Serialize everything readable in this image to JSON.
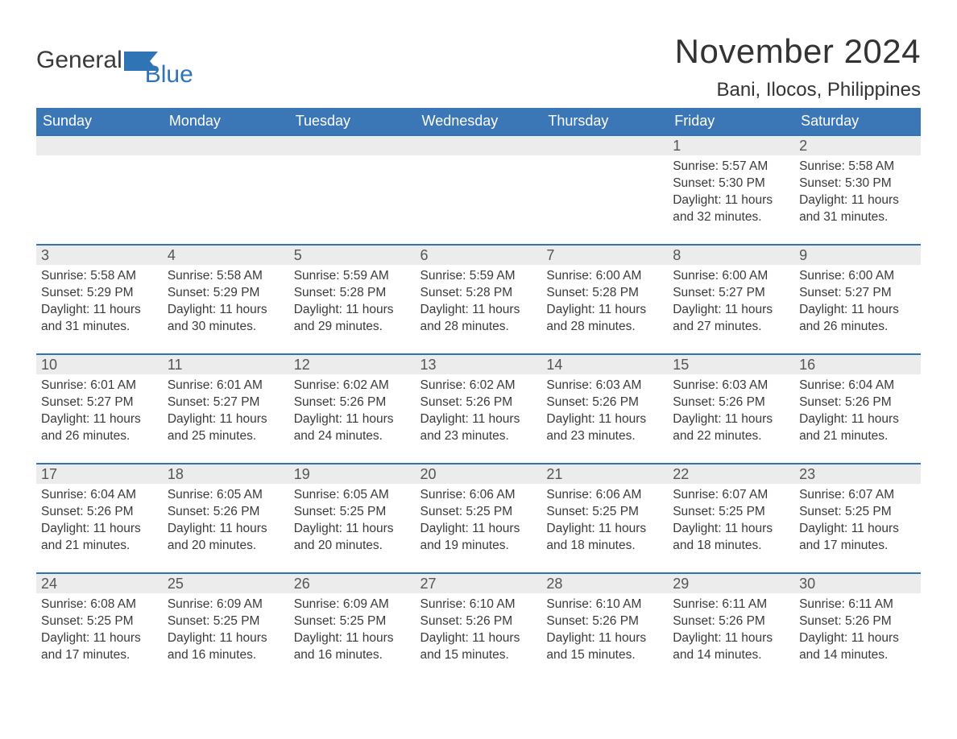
{
  "logo": {
    "word1": "General",
    "word2": "Blue"
  },
  "title": "November 2024",
  "location": "Bani, Ilocos, Philippines",
  "colors": {
    "header_bg": "#3b77b6",
    "header_text": "#ffffff",
    "strip_bg": "#ececec",
    "strip_border": "#2f74b5",
    "body_text": "#3a3a3a",
    "logo_blue": "#2f74b5",
    "background": "#ffffff"
  },
  "typography": {
    "title_fontsize": 42,
    "location_fontsize": 24,
    "dayheader_fontsize": 18,
    "daynum_fontsize": 18,
    "body_fontsize": 15.5
  },
  "layout": {
    "columns": 7,
    "rows": 5,
    "col_width_pct": 14.285
  },
  "labels": {
    "sunrise": "Sunrise:",
    "sunset": "Sunset:",
    "daylight": "Daylight:"
  },
  "day_headers": [
    "Sunday",
    "Monday",
    "Tuesday",
    "Wednesday",
    "Thursday",
    "Friday",
    "Saturday"
  ],
  "weeks": [
    [
      null,
      null,
      null,
      null,
      null,
      {
        "n": "1",
        "sunrise": "5:57 AM",
        "sunset": "5:30 PM",
        "daylight": "11 hours and 32 minutes."
      },
      {
        "n": "2",
        "sunrise": "5:58 AM",
        "sunset": "5:30 PM",
        "daylight": "11 hours and 31 minutes."
      }
    ],
    [
      {
        "n": "3",
        "sunrise": "5:58 AM",
        "sunset": "5:29 PM",
        "daylight": "11 hours and 31 minutes."
      },
      {
        "n": "4",
        "sunrise": "5:58 AM",
        "sunset": "5:29 PM",
        "daylight": "11 hours and 30 minutes."
      },
      {
        "n": "5",
        "sunrise": "5:59 AM",
        "sunset": "5:28 PM",
        "daylight": "11 hours and 29 minutes."
      },
      {
        "n": "6",
        "sunrise": "5:59 AM",
        "sunset": "5:28 PM",
        "daylight": "11 hours and 28 minutes."
      },
      {
        "n": "7",
        "sunrise": "6:00 AM",
        "sunset": "5:28 PM",
        "daylight": "11 hours and 28 minutes."
      },
      {
        "n": "8",
        "sunrise": "6:00 AM",
        "sunset": "5:27 PM",
        "daylight": "11 hours and 27 minutes."
      },
      {
        "n": "9",
        "sunrise": "6:00 AM",
        "sunset": "5:27 PM",
        "daylight": "11 hours and 26 minutes."
      }
    ],
    [
      {
        "n": "10",
        "sunrise": "6:01 AM",
        "sunset": "5:27 PM",
        "daylight": "11 hours and 26 minutes."
      },
      {
        "n": "11",
        "sunrise": "6:01 AM",
        "sunset": "5:27 PM",
        "daylight": "11 hours and 25 minutes."
      },
      {
        "n": "12",
        "sunrise": "6:02 AM",
        "sunset": "5:26 PM",
        "daylight": "11 hours and 24 minutes."
      },
      {
        "n": "13",
        "sunrise": "6:02 AM",
        "sunset": "5:26 PM",
        "daylight": "11 hours and 23 minutes."
      },
      {
        "n": "14",
        "sunrise": "6:03 AM",
        "sunset": "5:26 PM",
        "daylight": "11 hours and 23 minutes."
      },
      {
        "n": "15",
        "sunrise": "6:03 AM",
        "sunset": "5:26 PM",
        "daylight": "11 hours and 22 minutes."
      },
      {
        "n": "16",
        "sunrise": "6:04 AM",
        "sunset": "5:26 PM",
        "daylight": "11 hours and 21 minutes."
      }
    ],
    [
      {
        "n": "17",
        "sunrise": "6:04 AM",
        "sunset": "5:26 PM",
        "daylight": "11 hours and 21 minutes."
      },
      {
        "n": "18",
        "sunrise": "6:05 AM",
        "sunset": "5:26 PM",
        "daylight": "11 hours and 20 minutes."
      },
      {
        "n": "19",
        "sunrise": "6:05 AM",
        "sunset": "5:25 PM",
        "daylight": "11 hours and 20 minutes."
      },
      {
        "n": "20",
        "sunrise": "6:06 AM",
        "sunset": "5:25 PM",
        "daylight": "11 hours and 19 minutes."
      },
      {
        "n": "21",
        "sunrise": "6:06 AM",
        "sunset": "5:25 PM",
        "daylight": "11 hours and 18 minutes."
      },
      {
        "n": "22",
        "sunrise": "6:07 AM",
        "sunset": "5:25 PM",
        "daylight": "11 hours and 18 minutes."
      },
      {
        "n": "23",
        "sunrise": "6:07 AM",
        "sunset": "5:25 PM",
        "daylight": "11 hours and 17 minutes."
      }
    ],
    [
      {
        "n": "24",
        "sunrise": "6:08 AM",
        "sunset": "5:25 PM",
        "daylight": "11 hours and 17 minutes."
      },
      {
        "n": "25",
        "sunrise": "6:09 AM",
        "sunset": "5:25 PM",
        "daylight": "11 hours and 16 minutes."
      },
      {
        "n": "26",
        "sunrise": "6:09 AM",
        "sunset": "5:25 PM",
        "daylight": "11 hours and 16 minutes."
      },
      {
        "n": "27",
        "sunrise": "6:10 AM",
        "sunset": "5:26 PM",
        "daylight": "11 hours and 15 minutes."
      },
      {
        "n": "28",
        "sunrise": "6:10 AM",
        "sunset": "5:26 PM",
        "daylight": "11 hours and 15 minutes."
      },
      {
        "n": "29",
        "sunrise": "6:11 AM",
        "sunset": "5:26 PM",
        "daylight": "11 hours and 14 minutes."
      },
      {
        "n": "30",
        "sunrise": "6:11 AM",
        "sunset": "5:26 PM",
        "daylight": "11 hours and 14 minutes."
      }
    ]
  ]
}
